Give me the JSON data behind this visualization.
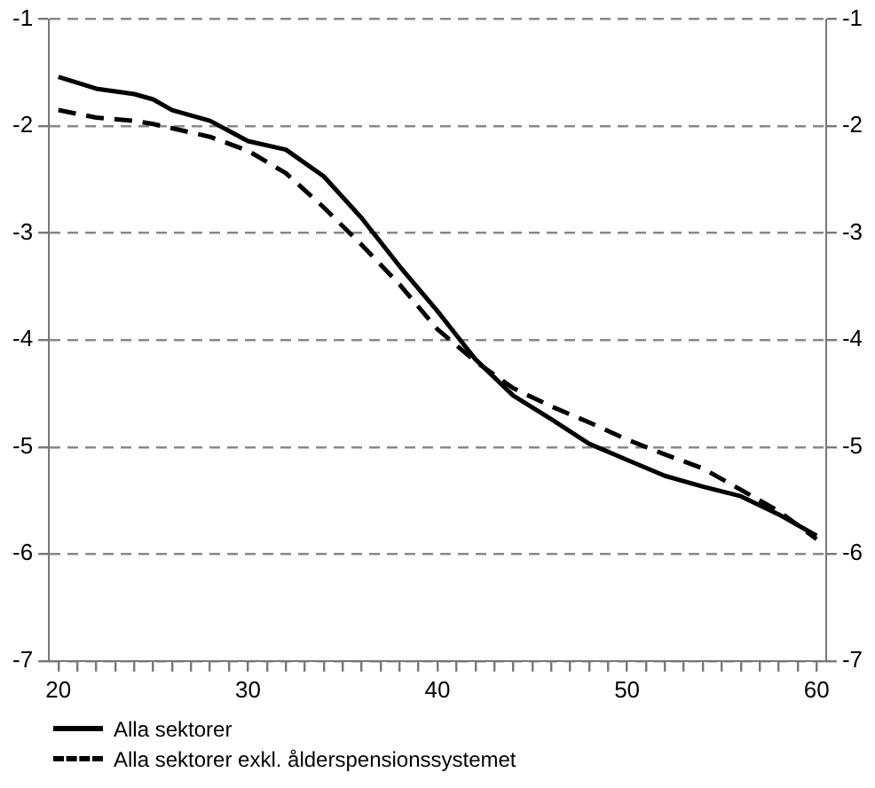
{
  "chart_data": {
    "type": "line",
    "x": [
      20,
      22,
      24,
      25,
      26,
      28,
      30,
      32,
      34,
      36,
      38,
      40,
      42,
      44,
      46,
      48,
      50,
      52,
      54,
      56,
      58,
      60
    ],
    "series": [
      {
        "name": "Alla sektorer",
        "color": "#000000",
        "line_style": "solid",
        "values": [
          -1.54,
          -1.65,
          -1.7,
          -1.75,
          -1.85,
          -1.95,
          -2.14,
          -2.22,
          -2.47,
          -2.86,
          -3.31,
          -3.73,
          -4.18,
          -4.52,
          -4.74,
          -4.97,
          -5.12,
          -5.27,
          -5.37,
          -5.46,
          -5.63,
          -5.83
        ]
      },
      {
        "name": "Alla sektorer exkl. ålderspensionssystemet",
        "color": "#000000",
        "line_style": "dashed",
        "values": [
          -1.85,
          -1.92,
          -1.95,
          -1.98,
          -2.02,
          -2.1,
          -2.23,
          -2.44,
          -2.76,
          -3.11,
          -3.48,
          -3.9,
          -4.2,
          -4.45,
          -4.62,
          -4.77,
          -4.93,
          -5.07,
          -5.2,
          -5.4,
          -5.6,
          -5.86
        ]
      }
    ],
    "xlim": [
      19.5,
      60.5
    ],
    "xticks": [
      20,
      {
        "value": 21,
        "label": null
      },
      {
        "value": 22,
        "label": null
      },
      {
        "value": 23,
        "label": null
      },
      {
        "value": 24,
        "label": null
      },
      {
        "value": 25,
        "label": null
      },
      {
        "value": 26,
        "label": null
      },
      {
        "value": 27,
        "label": null
      },
      {
        "value": 28,
        "label": null
      },
      {
        "value": 29,
        "label": null
      },
      30,
      {
        "value": 31,
        "label": null
      },
      {
        "value": 32,
        "label": null
      },
      {
        "value": 33,
        "label": null
      },
      {
        "value": 34,
        "label": null
      },
      {
        "value": 35,
        "label": null
      },
      {
        "value": 36,
        "label": null
      },
      {
        "value": 37,
        "label": null
      },
      {
        "value": 38,
        "label": null
      },
      {
        "value": 39,
        "label": null
      },
      40,
      {
        "value": 41,
        "label": null
      },
      {
        "value": 42,
        "label": null
      },
      {
        "value": 43,
        "label": null
      },
      {
        "value": 44,
        "label": null
      },
      {
        "value": 45,
        "label": null
      },
      {
        "value": 46,
        "label": null
      },
      {
        "value": 47,
        "label": null
      },
      {
        "value": 48,
        "label": null
      },
      {
        "value": 49,
        "label": null
      },
      50,
      {
        "value": 51,
        "label": null
      },
      {
        "value": 52,
        "label": null
      },
      {
        "value": 53,
        "label": null
      },
      {
        "value": 54,
        "label": null
      },
      {
        "value": 55,
        "label": null
      },
      {
        "value": 56,
        "label": null
      },
      {
        "value": 57,
        "label": null
      },
      {
        "value": 58,
        "label": null
      },
      {
        "value": 59,
        "label": null
      },
      60
    ],
    "ylim": [
      -7,
      -1
    ],
    "yticks": [
      -7,
      -6,
      -5,
      -4,
      -3,
      -2,
      -1
    ],
    "y2lim": [
      -7,
      -1
    ],
    "y2ticks": [
      -7,
      -6,
      -5,
      -4,
      -3,
      -2,
      -1
    ],
    "grid": "y",
    "legend": "bottom left",
    "marker": "none"
  }
}
